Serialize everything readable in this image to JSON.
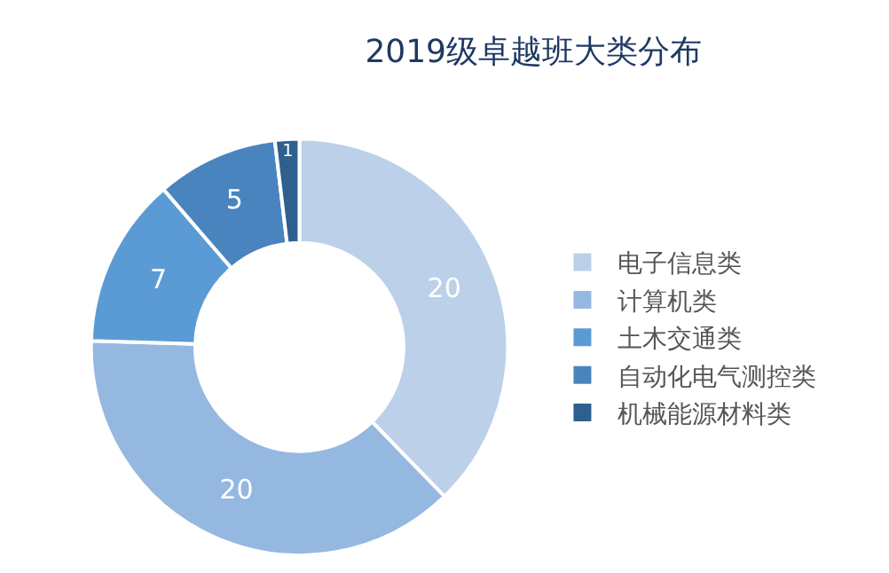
{
  "chart_data": {
    "type": "donut",
    "title": "2019级卓越班大类分布",
    "categories": [
      "电子信息类",
      "计算机类",
      "土木交通类",
      "自动化电气测控类",
      "机械能源材料类"
    ],
    "values": [
      20,
      20,
      7,
      5,
      1
    ],
    "colors": [
      "#bcd0ea",
      "#95b8e1",
      "#5b9bd5",
      "#4a84bf",
      "#2f5f8f"
    ],
    "data_labels": true,
    "legend": "right"
  }
}
